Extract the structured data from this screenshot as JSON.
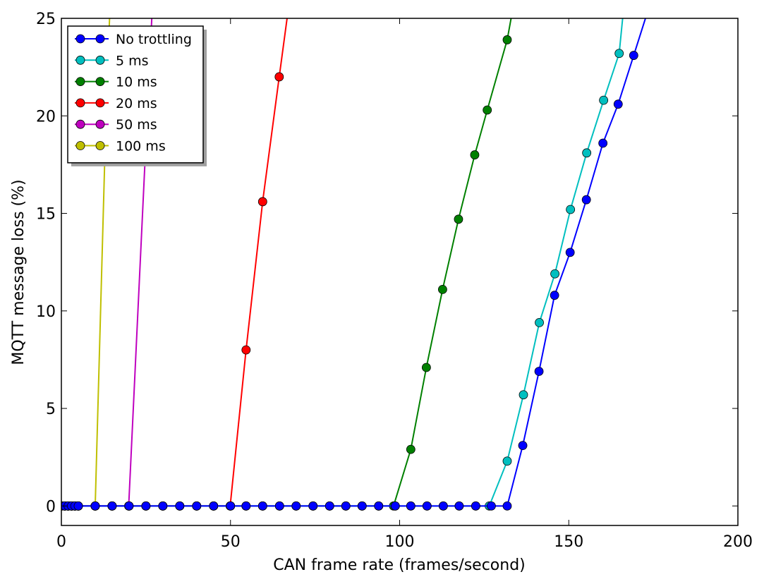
{
  "chart_data": {
    "type": "line",
    "xlabel": "CAN frame rate (frames/second)",
    "ylabel": "MQTT message loss (%)",
    "xlim": [
      0,
      200
    ],
    "ylim": [
      -1,
      25
    ],
    "xticks": [
      0,
      50,
      100,
      150,
      200
    ],
    "yticks": [
      0,
      5,
      10,
      15,
      20,
      25
    ],
    "grid": false,
    "legend_position": "top-left",
    "series": [
      {
        "name": "No trottling",
        "color": "#0000ff",
        "x": [
          0,
          1,
          2,
          3,
          4,
          5,
          10,
          15,
          20,
          25,
          30,
          35,
          40,
          45,
          50,
          54.6,
          59.5,
          64.5,
          69.4,
          74.4,
          79.3,
          84.1,
          88.9,
          93.8,
          98.7,
          103.3,
          108.1,
          112.9,
          117.6,
          122.5,
          127.1,
          131.8,
          136.4,
          141.2,
          145.8,
          150.4,
          155.2,
          160.1,
          164.6,
          169.2,
          174.5
        ],
        "y": [
          0,
          0,
          0,
          0,
          0,
          0,
          0,
          0,
          0,
          0,
          0,
          0,
          0,
          0,
          0,
          0,
          0,
          0,
          0,
          0,
          0,
          0,
          0,
          0,
          0,
          0,
          0,
          0,
          0,
          0,
          0,
          0,
          3.1,
          6.9,
          10.8,
          13.0,
          15.7,
          18.6,
          20.6,
          23.1,
          26.0
        ]
      },
      {
        "name": "5 ms",
        "color": "#00bfbf",
        "x": [
          0,
          1,
          2,
          3,
          4,
          5,
          10,
          15,
          20,
          25,
          30,
          35,
          40,
          45,
          50,
          54.6,
          59.5,
          64.5,
          69.4,
          74.4,
          79.3,
          84.1,
          88.9,
          93.8,
          98.7,
          103.3,
          108.1,
          112.9,
          117.6,
          122.5,
          126.5,
          131.8,
          136.6,
          141.3,
          145.9,
          150.5,
          155.3,
          160.3,
          164.9,
          166.5
        ],
        "y": [
          0,
          0,
          0,
          0,
          0,
          0,
          0,
          0,
          0,
          0,
          0,
          0,
          0,
          0,
          0,
          0,
          0,
          0,
          0,
          0,
          0,
          0,
          0,
          0,
          0,
          0,
          0,
          0,
          0,
          0,
          0,
          2.3,
          5.7,
          9.4,
          11.9,
          15.2,
          18.1,
          20.8,
          23.2,
          26.0
        ]
      },
      {
        "name": "10 ms",
        "color": "#008000",
        "x": [
          0,
          1,
          2,
          3,
          4,
          5,
          10,
          15,
          20,
          25,
          30,
          35,
          40,
          45,
          50,
          54.6,
          59.5,
          64.5,
          69.4,
          74.4,
          79.3,
          84.1,
          88.9,
          93.8,
          98.2,
          103.3,
          107.9,
          112.7,
          117.4,
          122.2,
          125.9,
          131.8,
          134.0
        ],
        "y": [
          0,
          0,
          0,
          0,
          0,
          0,
          0,
          0,
          0,
          0,
          0,
          0,
          0,
          0,
          0,
          0,
          0,
          0,
          0,
          0,
          0,
          0,
          0,
          0,
          0,
          2.9,
          7.1,
          11.1,
          14.7,
          18.0,
          20.3,
          23.9,
          26.0
        ]
      },
      {
        "name": "20 ms",
        "color": "#ff0000",
        "x": [
          0,
          1,
          2,
          3,
          4,
          5,
          10,
          15,
          20,
          25,
          30,
          35,
          40,
          45,
          49.9,
          54.6,
          59.5,
          64.4,
          67.5
        ],
        "y": [
          0,
          0,
          0,
          0,
          0,
          0,
          0,
          0,
          0,
          0,
          0,
          0,
          0,
          0,
          0,
          8.0,
          15.6,
          22.0,
          26.0
        ]
      },
      {
        "name": "50 ms",
        "color": "#bf00bf",
        "x": [
          0,
          1,
          2,
          3,
          4,
          5,
          10,
          15,
          19.9,
          27.0
        ],
        "y": [
          0,
          0,
          0,
          0,
          0,
          0,
          0,
          0,
          0,
          26.0
        ]
      },
      {
        "name": "100 ms",
        "color": "#bfbf00",
        "x": [
          0,
          1,
          2,
          3,
          4,
          5,
          10,
          13.5,
          14.5
        ],
        "y": [
          0,
          0,
          0,
          0,
          0,
          0,
          0,
          22.0,
          26.0
        ]
      }
    ]
  }
}
